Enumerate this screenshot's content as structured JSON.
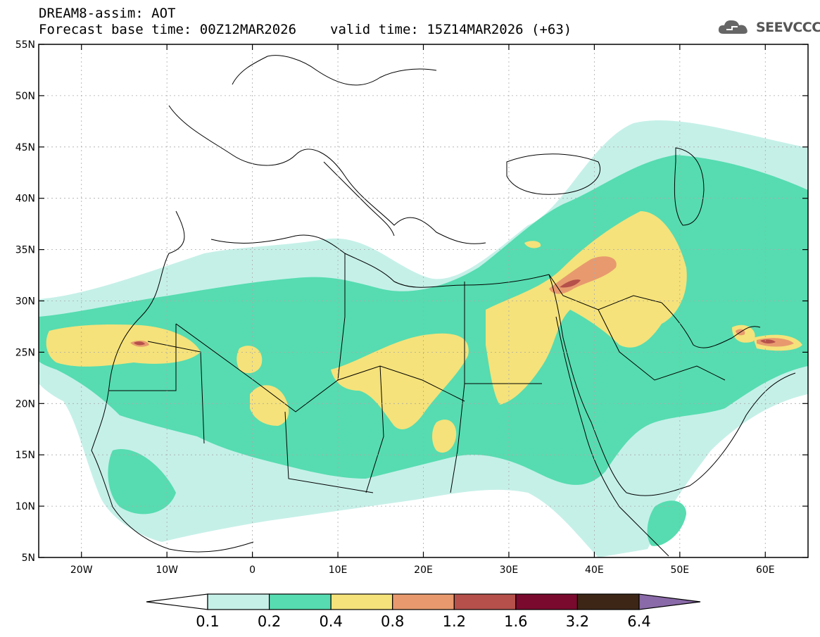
{
  "header": {
    "title": "DREAM8-assim: AOT",
    "base_time": "Forecast base time: 00Z12MAR2026",
    "valid_time": "valid time: 15Z14MAR2026 (+63)",
    "logo_text": "SEEVCCC"
  },
  "map": {
    "lon_range": [
      -25,
      65
    ],
    "lat_range": [
      5,
      55
    ],
    "lon_ticks": [
      "20W",
      "10W",
      "0",
      "10E",
      "20E",
      "30E",
      "40E",
      "50E",
      "60E"
    ],
    "lat_ticks": [
      "55N",
      "50N",
      "45N",
      "40N",
      "35N",
      "30N",
      "25N",
      "20N",
      "15N",
      "10N",
      "5N"
    ]
  },
  "colorbar": {
    "levels": [
      "0.1",
      "0.2",
      "0.4",
      "0.8",
      "1.2",
      "1.6",
      "3.2",
      "6.4"
    ],
    "colors": [
      "#c5f0e8",
      "#56dcb0",
      "#f5e27a",
      "#e89a6e",
      "#b5504a",
      "#7a0a2e",
      "#3d2616",
      "#8a6aa8"
    ]
  }
}
